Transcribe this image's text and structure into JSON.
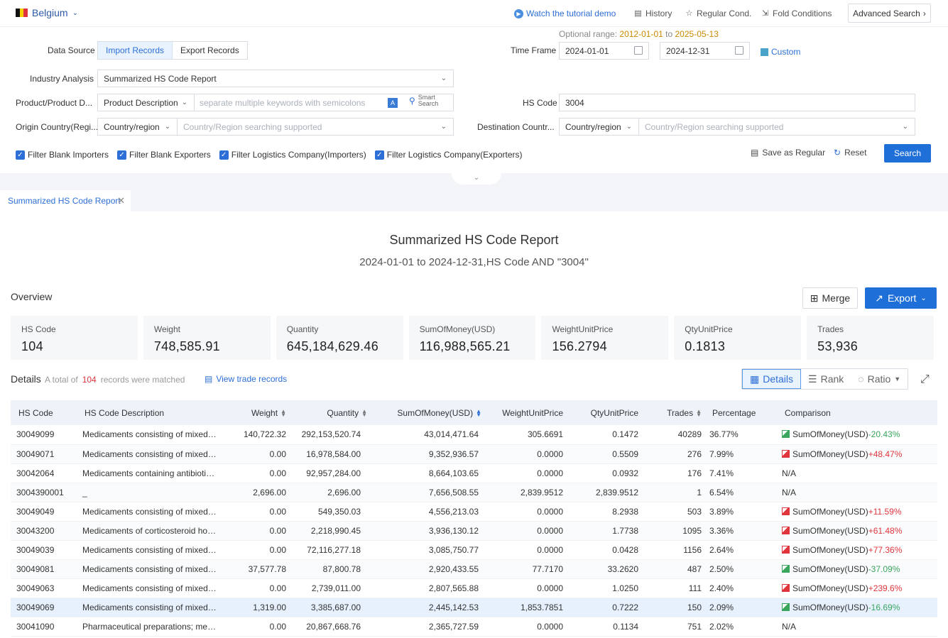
{
  "topbar": {
    "country": "Belgium",
    "tutorial": "Watch the tutorial demo",
    "history": "History",
    "regular_cond": "Regular Cond.",
    "fold": "Fold Conditions",
    "advanced": "Advanced Search"
  },
  "form": {
    "data_source_label": "Data Source",
    "import_records": "Import Records",
    "export_records": "Export Records",
    "industry_label": "Industry Analysis",
    "industry_value": "Summarized HS Code Report",
    "product_label": "Product/Product D...",
    "product_type": "Product Description",
    "keyword_placeholder": "separate multiple keywords with semicolons",
    "smart_search_1": "Smart",
    "smart_search_2": "Search",
    "origin_label": "Origin Country(Regi...",
    "origin_type": "Country/region",
    "origin_placeholder": "Country/Region searching supported",
    "optional_prefix": "Optional range",
    "optional_start": "2012-01-01",
    "optional_to": "to",
    "optional_end": "2025-05-13",
    "timeframe_label": "Time Frame",
    "date_from": "2024-01-01",
    "date_to": "2024-12-31",
    "custom": "Custom",
    "hs_label": "HS Code",
    "hs_value": "3004",
    "dest_label": "Destination Countr...",
    "dest_type": "Country/region",
    "dest_placeholder": "Country/Region searching supported",
    "checks": [
      "Filter Blank Importers",
      "Filter Blank Exporters",
      "Filter Logistics Company(Importers)",
      "Filter Logistics Company(Exporters)"
    ],
    "save_regular": "Save as Regular",
    "reset": "Reset",
    "search": "Search"
  },
  "tab": {
    "label": "Summarized HS Code Report"
  },
  "report": {
    "title": "Summarized HS Code Report",
    "subtitle": "2024-01-01 to 2024-12-31,HS Code AND \"3004\"",
    "overview": "Overview",
    "merge": "Merge",
    "export": "Export"
  },
  "stats": [
    {
      "k": "HS Code",
      "v": "104"
    },
    {
      "k": "Weight",
      "v": "748,585.91"
    },
    {
      "k": "Quantity",
      "v": "645,184,629.46"
    },
    {
      "k": "SumOfMoney(USD)",
      "v": "116,988,565.21"
    },
    {
      "k": "WeightUnitPrice",
      "v": "156.2794"
    },
    {
      "k": "QtyUnitPrice",
      "v": "0.1813"
    },
    {
      "k": "Trades",
      "v": "53,936"
    }
  ],
  "details": {
    "title": "Details",
    "total_prefix": "A total of",
    "total": "104",
    "total_suffix": "records were matched",
    "view_trade": "View trade records",
    "toggle_details": "Details",
    "toggle_rank": "Rank",
    "toggle_ratio": "Ratio"
  },
  "table": {
    "headers": [
      "HS Code",
      "HS Code Description",
      "Weight",
      "Quantity",
      "SumOfMoney(USD)",
      "WeightUnitPrice",
      "QtyUnitPrice",
      "Trades",
      "Percentage",
      "Comparison"
    ],
    "rows": [
      {
        "code": "30049099",
        "desc": "Medicaments consisting of mixed or...",
        "weight": "140,722.32",
        "qty": "292,153,520.74",
        "money": "43,014,471.64",
        "wup": "305.6691",
        "qup": "0.1472",
        "trades": "40289",
        "pct": "36.77%",
        "cmp": "SumOfMoney(USD)",
        "chg": "-20.43%",
        "dir": "neg"
      },
      {
        "code": "30049071",
        "desc": "Medicaments consisting of mixed or...",
        "weight": "0.00",
        "qty": "16,978,584.00",
        "money": "9,352,936.57",
        "wup": "0.0000",
        "qup": "0.5509",
        "trades": "276",
        "pct": "7.99%",
        "cmp": "SumOfMoney(USD)",
        "chg": "+48.47%",
        "dir": "pos"
      },
      {
        "code": "30042064",
        "desc": "Medicaments containing antibiotics,...",
        "weight": "0.00",
        "qty": "92,957,284.00",
        "money": "8,664,103.65",
        "wup": "0.0000",
        "qup": "0.0932",
        "trades": "176",
        "pct": "7.41%",
        "cmp": "N/A",
        "chg": "",
        "dir": "na"
      },
      {
        "code": "3004390001",
        "desc": "_",
        "weight": "2,696.00",
        "qty": "2,696.00",
        "money": "7,656,508.55",
        "wup": "2,839.9512",
        "qup": "2,839.9512",
        "trades": "1",
        "pct": "6.54%",
        "cmp": "N/A",
        "chg": "",
        "dir": "na"
      },
      {
        "code": "30049049",
        "desc": "Medicaments consisting of mixed or...",
        "weight": "0.00",
        "qty": "549,350.03",
        "money": "4,556,213.03",
        "wup": "0.0000",
        "qup": "8.2938",
        "trades": "503",
        "pct": "3.89%",
        "cmp": "SumOfMoney(USD)",
        "chg": "+11.59%",
        "dir": "pos"
      },
      {
        "code": "30043200",
        "desc": "Medicaments of corticosteroid horm...",
        "weight": "0.00",
        "qty": "2,218,990.45",
        "money": "3,936,130.12",
        "wup": "0.0000",
        "qup": "1.7738",
        "trades": "1095",
        "pct": "3.36%",
        "cmp": "SumOfMoney(USD)",
        "chg": "+61.48%",
        "dir": "pos"
      },
      {
        "code": "30049039",
        "desc": "Medicaments consisting of mixed or...",
        "weight": "0.00",
        "qty": "72,116,277.18",
        "money": "3,085,750.77",
        "wup": "0.0000",
        "qup": "0.0428",
        "trades": "1156",
        "pct": "2.64%",
        "cmp": "SumOfMoney(USD)",
        "chg": "+77.36%",
        "dir": "pos"
      },
      {
        "code": "30049081",
        "desc": "Medicaments consisting of mixed or...",
        "weight": "37,577.78",
        "qty": "87,800.78",
        "money": "2,920,433.55",
        "wup": "77.7170",
        "qup": "33.2620",
        "trades": "487",
        "pct": "2.50%",
        "cmp": "SumOfMoney(USD)",
        "chg": "-37.09%",
        "dir": "neg"
      },
      {
        "code": "30049063",
        "desc": "Medicaments consisting of mixed or...",
        "weight": "0.00",
        "qty": "2,739,011.00",
        "money": "2,807,565.88",
        "wup": "0.0000",
        "qup": "1.0250",
        "trades": "111",
        "pct": "2.40%",
        "cmp": "SumOfMoney(USD)",
        "chg": "+239.6%",
        "dir": "pos"
      },
      {
        "code": "30049069",
        "desc": "Medicaments consisting of mixed or...",
        "weight": "1,319.00",
        "qty": "3,385,687.00",
        "money": "2,445,142.53",
        "wup": "1,853.7851",
        "qup": "0.7222",
        "trades": "150",
        "pct": "2.09%",
        "cmp": "SumOfMoney(USD)",
        "chg": "-16.69%",
        "dir": "neg"
      },
      {
        "code": "30041090",
        "desc": "Pharmaceutical preparations; medic...",
        "weight": "0.00",
        "qty": "20,867,668.76",
        "money": "2,365,727.59",
        "wup": "0.0000",
        "qup": "0.1134",
        "trades": "751",
        "pct": "2.02%",
        "cmp": "N/A",
        "chg": "",
        "dir": "na"
      }
    ]
  }
}
